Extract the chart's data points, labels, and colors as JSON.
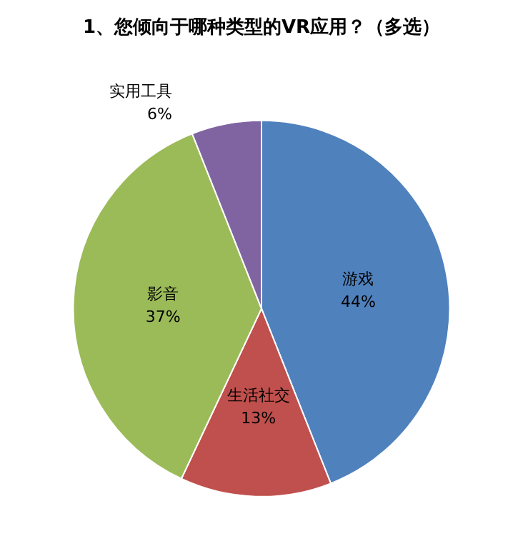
{
  "chart_data": {
    "type": "pie",
    "title": "1、您倾向于哪种类型的VR应用？（多选）",
    "categories": [
      "游戏",
      "生活社交",
      "影音",
      "实用工具"
    ],
    "values": [
      44,
      13,
      37,
      6
    ],
    "value_labels": [
      "44%",
      "13%",
      "37%",
      "6%"
    ],
    "colors": [
      "#4f81bd",
      "#c0504d",
      "#9bbb59",
      "#8064a2"
    ],
    "legend": false
  }
}
